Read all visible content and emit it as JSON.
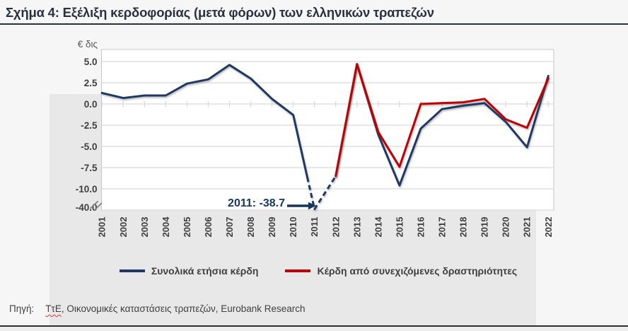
{
  "figure": {
    "title": "Σχήμα 4: Εξέλιξη κερδοφορίας (μετά φόρων) των ελληνικών τραπεζών",
    "footer": {
      "source_label": "Πηγή:",
      "source_underlined": "ΤτΕ",
      "source_rest": ", Οικονομικές καταστάσεις τραπεζών, Eurobank Research"
    }
  },
  "chart_data": {
    "type": "line",
    "title": "Σχήμα 4: Εξέλιξη κερδοφορίας (μετά φόρων) των ελληνικών τραπεζών",
    "unit_label": "€ δις",
    "x": [
      2001,
      2002,
      2003,
      2004,
      2005,
      2006,
      2007,
      2008,
      2009,
      2010,
      2011,
      2012,
      2013,
      2014,
      2015,
      2016,
      2017,
      2018,
      2019,
      2020,
      2021,
      2022
    ],
    "series": [
      {
        "name": "Συνολικά ετήσια κέρδη",
        "color": "#1f3864",
        "line_style": "solid, dashed between 2010 and 2012 across axis break",
        "values": [
          1.3,
          0.7,
          1.0,
          1.0,
          2.4,
          2.9,
          4.6,
          3.0,
          0.6,
          -1.3,
          -38.7,
          -8.5,
          4.7,
          -3.6,
          -9.6,
          -2.9,
          -0.6,
          -0.2,
          0.1,
          -2.1,
          -5.1,
          3.3
        ]
      },
      {
        "name": "Κέρδη από συνεχιζόμενες δραστηριότητες",
        "color": "#c00000",
        "line_style": "solid, starts 2012",
        "values": [
          null,
          null,
          null,
          null,
          null,
          null,
          null,
          null,
          null,
          null,
          null,
          -8.5,
          4.7,
          -3.3,
          -7.4,
          0.0,
          0.1,
          0.2,
          0.6,
          -1.8,
          -2.8,
          3.0
        ]
      }
    ],
    "yticks": [
      5,
      2.5,
      0,
      -2.5,
      -5,
      -7.5,
      -10,
      -40
    ],
    "ytick_labels": [
      "5.0",
      "2.5",
      "0.0",
      "-2.5",
      "-5.0",
      "-7.5",
      "-10.0",
      "-40.0"
    ],
    "axis_break_between": [
      -10,
      -40
    ],
    "annotation": {
      "text": "2011: -38.7",
      "year": 2011,
      "value": -38.7
    },
    "legend_position": "bottom",
    "grid": true,
    "ylim_visual": [
      -40,
      6.3
    ]
  }
}
